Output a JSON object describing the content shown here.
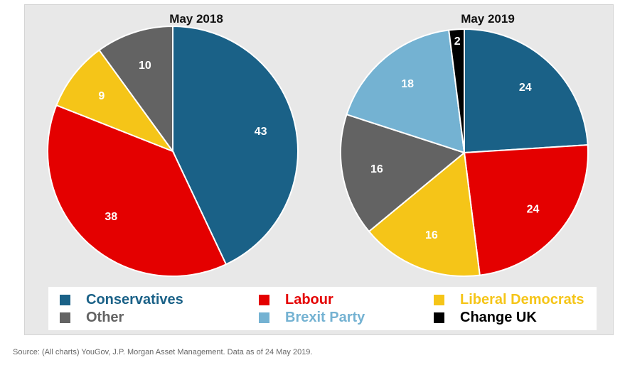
{
  "chart_data": [
    {
      "type": "pie",
      "title": "May 2018",
      "slices": [
        {
          "name": "Conservatives",
          "value": 43,
          "color": "#1a6187"
        },
        {
          "name": "Labour",
          "value": 38,
          "color": "#e40000"
        },
        {
          "name": "Liberal Democrats",
          "value": 9,
          "color": "#f5c518"
        },
        {
          "name": "Other",
          "value": 10,
          "color": "#636363"
        }
      ]
    },
    {
      "type": "pie",
      "title": "May 2019",
      "slices": [
        {
          "name": "Conservatives",
          "value": 24,
          "color": "#1a6187"
        },
        {
          "name": "Labour",
          "value": 24,
          "color": "#e40000"
        },
        {
          "name": "Liberal Democrats",
          "value": 16,
          "color": "#f5c518"
        },
        {
          "name": "Other",
          "value": 16,
          "color": "#636363"
        },
        {
          "name": "Brexit Party",
          "value": 18,
          "color": "#74b2d2"
        },
        {
          "name": "Change UK",
          "value": 2,
          "color": "#000000"
        }
      ]
    }
  ],
  "legend": {
    "items": [
      {
        "label": "Conservatives",
        "color": "#1a6187",
        "text_color": "#1a6187"
      },
      {
        "label": "Labour",
        "color": "#e40000",
        "text_color": "#e40000"
      },
      {
        "label": "Liberal Democrats",
        "color": "#f5c518",
        "text_color": "#f5c518"
      },
      {
        "label": "Other",
        "color": "#636363",
        "text_color": "#636363"
      },
      {
        "label": "Brexit Party",
        "color": "#74b2d2",
        "text_color": "#74b2d2"
      },
      {
        "label": "Change UK",
        "color": "#000000",
        "text_color": "#000000"
      }
    ]
  },
  "footer": {
    "source": "Source: (All charts) YouGov, J.P. Morgan Asset Management. Data as of 24 May 2019."
  }
}
